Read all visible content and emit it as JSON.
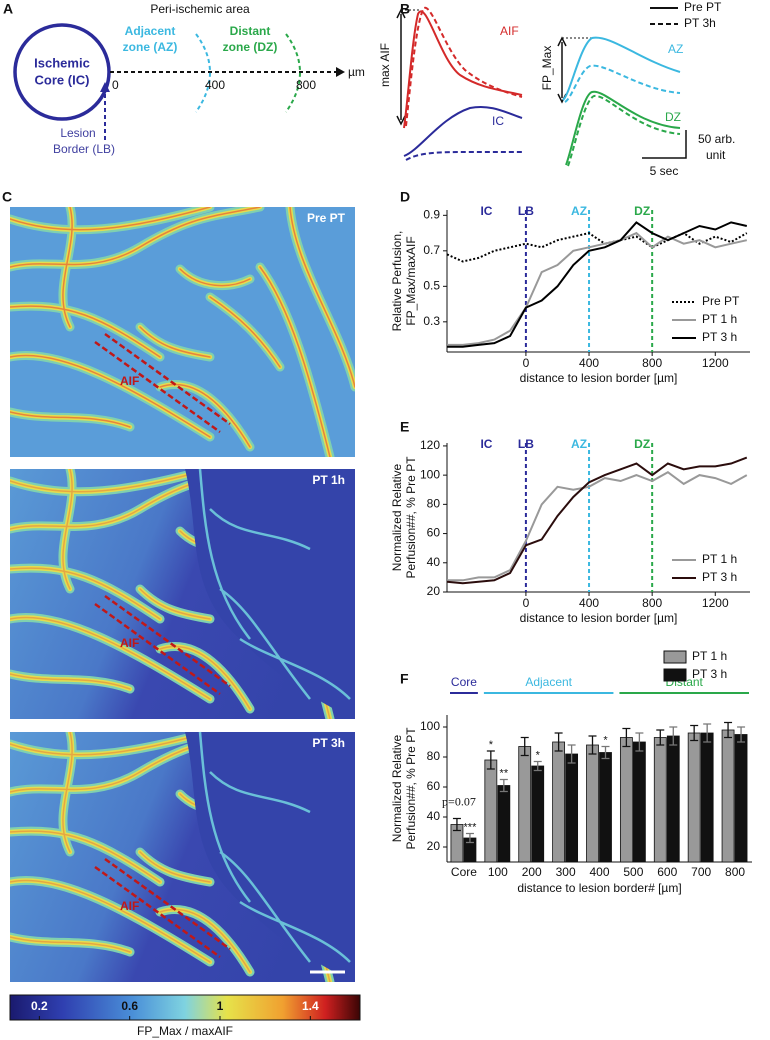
{
  "panel_letters": [
    "A",
    "B",
    "C",
    "D",
    "E",
    "F"
  ],
  "panel_a": {
    "area_title": "Peri-ischemic area",
    "core": [
      "Ischemic",
      "Core (IC)"
    ],
    "adjacent": [
      "Adjacent",
      "zone (AZ)"
    ],
    "distant": [
      "Distant",
      "zone (DZ)"
    ],
    "scale_ticks": [
      0,
      400,
      800
    ],
    "unit": "µm",
    "border": [
      "Lesion",
      "Border (LB)"
    ]
  },
  "panel_b": {
    "legend": [
      "Pre PT",
      "PT 3h"
    ],
    "left_axis": "max AIF",
    "aif": "AIF",
    "ic": "IC",
    "right_axis": "FP_Max",
    "az": "AZ",
    "dz": "DZ",
    "amplitude_scale": [
      "50 arb.",
      "unit"
    ],
    "time_scale": "5 sec"
  },
  "panel_c": {
    "images": [
      {
        "label": "Pre PT",
        "vessel": "AIF"
      },
      {
        "label": "PT 1h",
        "vessel": "AIF"
      },
      {
        "label": "PT 3h",
        "vessel": "AIF"
      }
    ],
    "colorbar": {
      "label": "FP_Max / maxAIF",
      "lim": [
        0.07,
        1.62
      ],
      "ticks": [
        0.2,
        0.6,
        1,
        1.4
      ]
    }
  },
  "chart_data": [
    {
      "type": "line",
      "ylabel": [
        "Relative Perfusion,",
        "FP_Max/maxAIF"
      ],
      "xlabel": "distance to lesion border [µm]",
      "x": [
        -500,
        -400,
        -300,
        -200,
        -100,
        0,
        100,
        200,
        300,
        400,
        500,
        600,
        700,
        800,
        900,
        1000,
        1100,
        1200,
        1300,
        1400
      ],
      "xlim": [
        -500,
        1420
      ],
      "xticks": [
        0,
        400,
        800,
        1200
      ],
      "ylim": [
        0.13,
        0.93
      ],
      "yticks": [
        0.3,
        0.5,
        0.7,
        0.9
      ],
      "core_label": "IC",
      "markers": [
        {
          "label": "LB",
          "x": 0,
          "color": "#2b2b9a"
        },
        {
          "label": "AZ",
          "x": 400,
          "color": "#3bb8e0"
        },
        {
          "label": "DZ",
          "x": 800,
          "color": "#2aa84a"
        }
      ],
      "legend": "lower right",
      "series": [
        {
          "name": "Pre PT",
          "color": "#000000",
          "style": "dotted",
          "values": [
            0.68,
            0.64,
            0.66,
            0.7,
            0.72,
            0.74,
            0.72,
            0.76,
            0.78,
            0.8,
            0.74,
            0.76,
            0.78,
            0.72,
            0.76,
            0.8,
            0.74,
            0.78,
            0.75,
            0.8
          ]
        },
        {
          "name": "PT 1 h",
          "color": "#999999",
          "style": "solid",
          "values": [
            0.17,
            0.17,
            0.18,
            0.2,
            0.25,
            0.38,
            0.58,
            0.62,
            0.7,
            0.72,
            0.74,
            0.76,
            0.8,
            0.72,
            0.78,
            0.74,
            0.76,
            0.72,
            0.74,
            0.76
          ]
        },
        {
          "name": "PT 3 h",
          "color": "#000000",
          "style": "solid",
          "values": [
            0.16,
            0.16,
            0.17,
            0.18,
            0.22,
            0.38,
            0.42,
            0.5,
            0.62,
            0.7,
            0.72,
            0.76,
            0.86,
            0.8,
            0.76,
            0.8,
            0.84,
            0.82,
            0.86,
            0.84
          ]
        }
      ]
    },
    {
      "type": "line",
      "ylabel": [
        "Normalized Relative",
        "Perfusion##, % Pre PT"
      ],
      "xlabel": "distance to lesion border [µm]",
      "x": [
        -500,
        -400,
        -300,
        -200,
        -100,
        0,
        100,
        200,
        300,
        400,
        500,
        600,
        700,
        800,
        900,
        1000,
        1100,
        1200,
        1300,
        1400
      ],
      "xlim": [
        -500,
        1420
      ],
      "xticks": [
        0,
        400,
        800,
        1200
      ],
      "ylim": [
        20,
        122
      ],
      "yticks": [
        20,
        40,
        60,
        80,
        100,
        120
      ],
      "core_label": "IC",
      "markers": [
        {
          "label": "LB",
          "x": 0,
          "color": "#2b2b9a"
        },
        {
          "label": "AZ",
          "x": 400,
          "color": "#3bb8e0"
        },
        {
          "label": "DZ",
          "x": 800,
          "color": "#2aa84a"
        }
      ],
      "legend": "lower right",
      "series": [
        {
          "name": "PT 1 h",
          "color": "#999999",
          "style": "solid",
          "values": [
            28,
            28,
            30,
            30,
            35,
            55,
            80,
            92,
            90,
            92,
            98,
            96,
            100,
            96,
            102,
            94,
            100,
            98,
            94,
            100
          ]
        },
        {
          "name": "PT 3 h",
          "color": "#2b0d0d",
          "style": "solid",
          "values": [
            27,
            26,
            27,
            28,
            33,
            52,
            56,
            72,
            85,
            95,
            100,
            104,
            108,
            100,
            108,
            104,
            106,
            106,
            108,
            112
          ]
        }
      ]
    },
    {
      "type": "bar",
      "ylabel": [
        "Normalized Relative",
        "Perfusion##, % Pre PT"
      ],
      "xlabel": "distance to lesion border# [µm]",
      "categories": [
        "Core",
        "100",
        "200",
        "300",
        "400",
        "500",
        "600",
        "700",
        "800"
      ],
      "ylim": [
        10,
        108
      ],
      "yticks": [
        20,
        40,
        60,
        80,
        100
      ],
      "legend": "upper right",
      "groups": [
        {
          "label": "Core",
          "color": "#2b2b9a",
          "from": 0,
          "to": 0
        },
        {
          "label": "Adjacent",
          "color": "#3bb8e0",
          "from": 1,
          "to": 4
        },
        {
          "label": "Distant",
          "color": "#2aa84a",
          "from": 5,
          "to": 8
        }
      ],
      "series": [
        {
          "name": "PT 1 h",
          "color": "#999999",
          "values": [
            35,
            78,
            87,
            90,
            88,
            93,
            93,
            96,
            98
          ],
          "errors": [
            4,
            6,
            6,
            6,
            6,
            6,
            5,
            5,
            5
          ],
          "significance": [
            "p=0.07",
            "*",
            null,
            null,
            null,
            null,
            null,
            null,
            null
          ]
        },
        {
          "name": "PT 3 h",
          "color": "#111111",
          "values": [
            26,
            61,
            74,
            82,
            83,
            90,
            94,
            96,
            95
          ],
          "errors": [
            3,
            4,
            3,
            6,
            4,
            6,
            6,
            6,
            5
          ],
          "significance": [
            "***",
            "**",
            "*",
            null,
            "*",
            null,
            null,
            null,
            null
          ]
        }
      ]
    }
  ]
}
